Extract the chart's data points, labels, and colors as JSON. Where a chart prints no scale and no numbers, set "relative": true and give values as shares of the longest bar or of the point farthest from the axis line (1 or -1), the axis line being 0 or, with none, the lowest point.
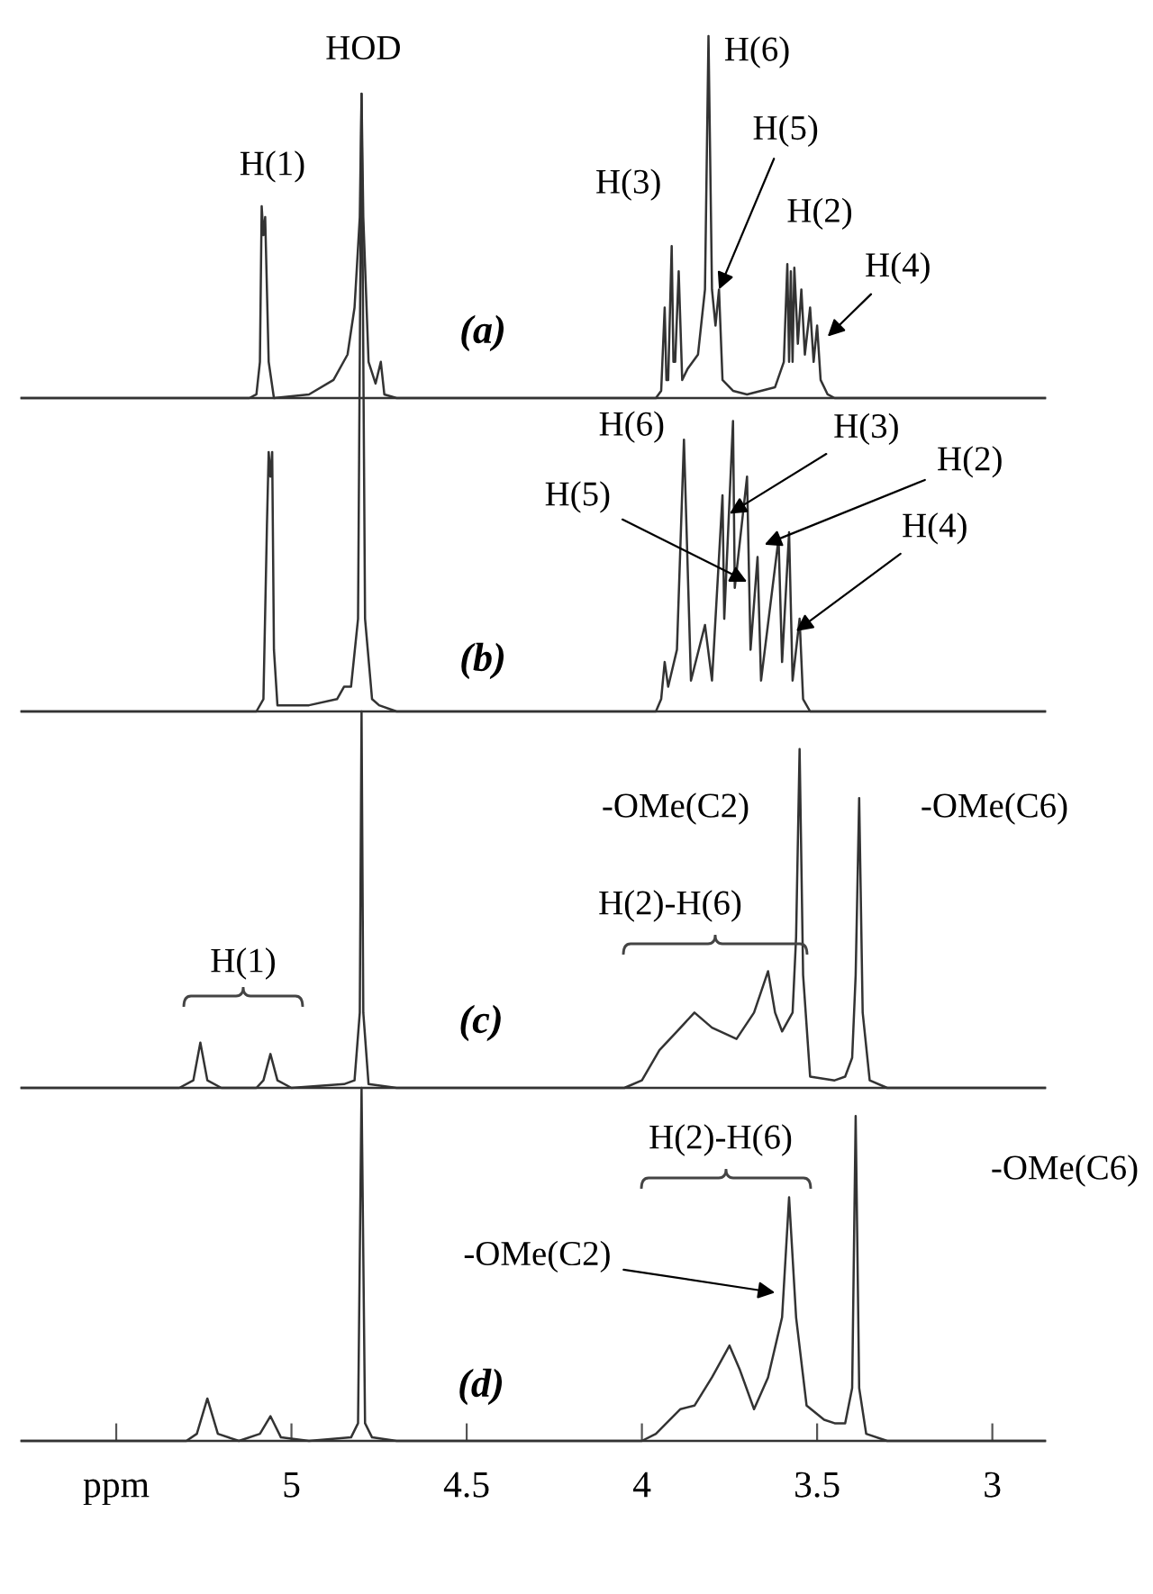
{
  "chart_data": [
    {
      "type": "line",
      "relative": true,
      "xlim": [
        5.77,
        2.85
      ],
      "tick_labels": false,
      "series": [
        {
          "color": "#333333",
          "x": [
            5.77,
            5.12,
            5.1,
            5.09,
            5.085,
            5.08,
            5.075,
            5.065,
            5.05,
            4.95,
            4.88,
            4.84,
            4.82,
            4.805,
            4.8,
            4.795,
            4.78,
            4.76,
            4.745,
            4.735,
            4.7,
            3.96,
            3.945,
            3.935,
            3.93,
            3.925,
            3.915,
            3.91,
            3.905,
            3.895,
            3.885,
            3.87,
            3.84,
            3.82,
            3.81,
            3.8,
            3.79,
            3.78,
            3.77,
            3.74,
            3.7,
            3.62,
            3.595,
            3.585,
            3.58,
            3.575,
            3.57,
            3.565,
            3.555,
            3.545,
            3.535,
            3.52,
            3.51,
            3.5,
            3.49,
            3.47,
            3.45,
            2.85
          ],
          "values": [
            0,
            0,
            0.01,
            0.1,
            0.53,
            0.45,
            0.5,
            0.1,
            0,
            0.01,
            0.05,
            0.12,
            0.25,
            0.5,
            0.84,
            0.5,
            0.1,
            0.04,
            0.1,
            0.01,
            0,
            0,
            0.02,
            0.25,
            0.05,
            0.05,
            0.42,
            0.1,
            0.1,
            0.35,
            0.05,
            0.08,
            0.12,
            0.3,
            1.0,
            0.3,
            0.2,
            0.3,
            0.05,
            0.02,
            0.01,
            0.03,
            0.1,
            0.37,
            0.1,
            0.35,
            0.1,
            0.36,
            0.15,
            0.3,
            0.12,
            0.25,
            0.1,
            0.2,
            0.05,
            0.01,
            0,
            0
          ]
        }
      ],
      "annotations": [
        {
          "text": "H(1)",
          "x": 5.08,
          "y": 0.53
        },
        {
          "text": "HOD",
          "x": 4.8,
          "y": 0.84
        },
        {
          "text": "H(3)",
          "x": 3.915,
          "y": 0.42
        },
        {
          "text": "H(6)",
          "x": 3.81,
          "y": 1.0
        },
        {
          "text": "H(5)",
          "x": 3.78,
          "y": 0.3
        },
        {
          "text": "H(2)",
          "x": 3.585,
          "y": 0.37
        },
        {
          "text": "H(4)",
          "x": 3.47,
          "y": 0.17
        },
        "(a)"
      ]
    },
    {
      "type": "line",
      "relative": true,
      "xlim": [
        5.77,
        2.85
      ],
      "tick_labels": false,
      "series": [
        {
          "color": "#333333",
          "x": [
            5.77,
            5.1,
            5.08,
            5.07,
            5.065,
            5.06,
            5.055,
            5.05,
            5.04,
            4.95,
            4.87,
            4.85,
            4.83,
            4.81,
            4.8,
            4.79,
            4.77,
            4.75,
            4.7,
            3.96,
            3.945,
            3.935,
            3.925,
            3.9,
            3.88,
            3.86,
            3.82,
            3.8,
            3.77,
            3.765,
            3.74,
            3.735,
            3.7,
            3.69,
            3.67,
            3.66,
            3.61,
            3.6,
            3.58,
            3.57,
            3.55,
            3.54,
            3.52,
            2.85
          ],
          "values": [
            0,
            0,
            0.02,
            0.3,
            0.42,
            0.38,
            0.42,
            0.1,
            0.01,
            0.01,
            0.02,
            0.04,
            0.04,
            0.15,
            1.0,
            0.15,
            0.02,
            0.01,
            0,
            0,
            0.02,
            0.08,
            0.04,
            0.1,
            0.44,
            0.05,
            0.14,
            0.05,
            0.35,
            0.15,
            0.47,
            0.2,
            0.38,
            0.1,
            0.25,
            0.05,
            0.28,
            0.08,
            0.29,
            0.05,
            0.15,
            0.02,
            0,
            0
          ]
        }
      ],
      "annotations": [
        {
          "text": "H(6)",
          "x": 3.88,
          "y": 0.44
        },
        {
          "text": "H(3)",
          "x": 3.75,
          "y": 0.32
        },
        {
          "text": "H(2)",
          "x": 3.65,
          "y": 0.27
        },
        {
          "text": "H(5)",
          "x": 3.7,
          "y": 0.21
        },
        {
          "text": "H(4)",
          "x": 3.56,
          "y": 0.13
        },
        "(b)"
      ]
    },
    {
      "type": "line",
      "relative": true,
      "xlim": [
        5.77,
        2.85
      ],
      "tick_labels": false,
      "series": [
        {
          "color": "#333333",
          "x": [
            5.77,
            5.32,
            5.28,
            5.26,
            5.24,
            5.2,
            5.1,
            5.08,
            5.06,
            5.04,
            5.0,
            4.85,
            4.82,
            4.805,
            4.8,
            4.795,
            4.78,
            4.7,
            4.05,
            4.0,
            3.95,
            3.9,
            3.85,
            3.8,
            3.73,
            3.68,
            3.64,
            3.62,
            3.6,
            3.57,
            3.56,
            3.55,
            3.54,
            3.52,
            3.45,
            3.42,
            3.4,
            3.39,
            3.38,
            3.37,
            3.35,
            3.3,
            2.85
          ],
          "values": [
            0,
            0,
            0.02,
            0.12,
            0.02,
            0,
            0,
            0.02,
            0.09,
            0.02,
            0,
            0.01,
            0.02,
            0.2,
            1.0,
            0.2,
            0.01,
            0,
            0,
            0.02,
            0.1,
            0.15,
            0.2,
            0.16,
            0.13,
            0.2,
            0.31,
            0.2,
            0.15,
            0.2,
            0.4,
            0.9,
            0.3,
            0.03,
            0.02,
            0.03,
            0.08,
            0.3,
            0.77,
            0.2,
            0.02,
            0,
            0
          ]
        }
      ],
      "annotations": [
        "-OMe(C2)",
        "-OMe(C6)",
        "(c)",
        "H(1)",
        "H(2)-H(6)"
      ]
    },
    {
      "type": "line",
      "relative": true,
      "xlim": [
        5.77,
        2.85
      ],
      "xticks": [
        {
          "value": 5.5,
          "label": "ppm"
        },
        5,
        4.5,
        4,
        3.5,
        3
      ],
      "tick_labels": "x",
      "series": [
        {
          "color": "#333333",
          "x": [
            5.77,
            5.3,
            5.27,
            5.24,
            5.21,
            5.15,
            5.09,
            5.06,
            5.03,
            4.95,
            4.83,
            4.81,
            4.8,
            4.79,
            4.77,
            4.7,
            4.0,
            3.96,
            3.92,
            3.89,
            3.85,
            3.8,
            3.75,
            3.72,
            3.68,
            3.64,
            3.6,
            3.58,
            3.56,
            3.53,
            3.48,
            3.45,
            3.42,
            3.4,
            3.39,
            3.38,
            3.36,
            3.3,
            2.85
          ],
          "values": [
            0,
            0,
            0.02,
            0.12,
            0.02,
            0,
            0.02,
            0.07,
            0.01,
            0,
            0.01,
            0.05,
            1.0,
            0.05,
            0.01,
            0,
            0,
            0.02,
            0.06,
            0.09,
            0.1,
            0.18,
            0.27,
            0.2,
            0.09,
            0.18,
            0.35,
            0.69,
            0.35,
            0.1,
            0.06,
            0.05,
            0.05,
            0.15,
            0.92,
            0.15,
            0.02,
            0,
            0
          ]
        }
      ],
      "annotations": [
        {
          "text": "-OMe(C2)",
          "x": 3.62,
          "y": 0.42
        },
        "-OMe(C6)",
        "(d)",
        "H(2)-H(6)"
      ]
    }
  ]
}
